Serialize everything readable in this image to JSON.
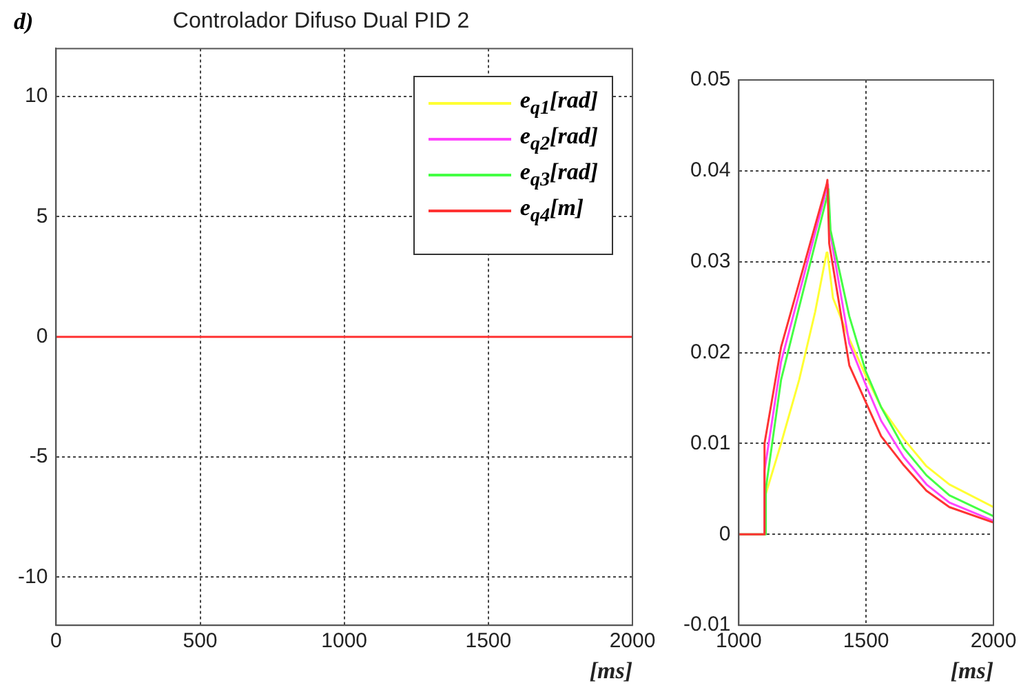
{
  "chart_data": [
    {
      "type": "line",
      "title": "Controlador Difuso Dual PID 2",
      "xlabel": "[ms]",
      "annotations": [
        "d)"
      ],
      "xlim": [
        0,
        2000
      ],
      "xticks": [
        0,
        500,
        1000,
        1500,
        2000
      ],
      "ylim": [
        -12,
        12
      ],
      "yticks": [
        -10,
        -5,
        0,
        5,
        10
      ],
      "grid": true,
      "legend": "top right",
      "marker": "none",
      "line_style": "solid",
      "series": [
        {
          "name": "e$_{q1}$[rad]",
          "color": "#ffff33"
        },
        {
          "name": "e$_{q2}$[rad]",
          "color": "#ff44ff"
        },
        {
          "name": "e$_{q3}$[rad]",
          "color": "#44ff44"
        },
        {
          "name": "e$_{q4}$[m]",
          "color": "#ff3333",
          "x": [
            0,
            1100,
            2000
          ],
          "values": [
            0,
            0,
            0
          ]
        }
      ]
    },
    {
      "type": "line",
      "xlabel": "[ms]",
      "xlim": [
        1000,
        2000
      ],
      "xticks": [
        1000,
        1500,
        2000
      ],
      "ylim": [
        -0.01,
        0.05
      ],
      "yticks": [
        -0.01,
        0,
        0.01,
        0.02,
        0.03,
        0.04,
        0.05
      ],
      "grid": true,
      "marker": "none",
      "line_style": "solid",
      "series": [
        {
          "color": "#ffff33",
          "x": [
            1000,
            1100,
            1101,
            1166,
            1237,
            1300,
            1345,
            1348,
            1370,
            1434,
            1498,
            1559,
            1648,
            1737,
            1827,
            2000
          ],
          "values": [
            0,
            0,
            0.004,
            0.01,
            0.017,
            0.0245,
            0.031,
            0.031,
            0.026,
            0.0215,
            0.0175,
            0.014,
            0.0105,
            0.0075,
            0.0055,
            0.003
          ]
        },
        {
          "color": "#ff44ff",
          "x": [
            1000,
            1100,
            1101,
            1166,
            1237,
            1345,
            1350,
            1360,
            1434,
            1498,
            1559,
            1648,
            1737,
            1827,
            2000
          ],
          "values": [
            0,
            0,
            0.007,
            0.019,
            0.0265,
            0.038,
            0.0385,
            0.033,
            0.021,
            0.0165,
            0.0125,
            0.0085,
            0.0055,
            0.0035,
            0.0015
          ]
        },
        {
          "color": "#44ff44",
          "x": [
            1000,
            1105,
            1106,
            1166,
            1237,
            1345,
            1352,
            1360,
            1434,
            1498,
            1559,
            1648,
            1737,
            1827,
            2000
          ],
          "values": [
            0,
            0,
            0.005,
            0.017,
            0.025,
            0.037,
            0.038,
            0.0335,
            0.024,
            0.018,
            0.014,
            0.0095,
            0.0065,
            0.0043,
            0.002
          ]
        },
        {
          "color": "#ff3333",
          "x": [
            1000,
            1100,
            1101,
            1166,
            1237,
            1345,
            1348,
            1355,
            1434,
            1498,
            1559,
            1648,
            1737,
            1827,
            2000
          ],
          "values": [
            0,
            0,
            0.01,
            0.0206,
            0.0277,
            0.0385,
            0.039,
            0.032,
            0.0186,
            0.0146,
            0.0108,
            0.0076,
            0.0048,
            0.003,
            0.0013
          ]
        }
      ]
    }
  ]
}
